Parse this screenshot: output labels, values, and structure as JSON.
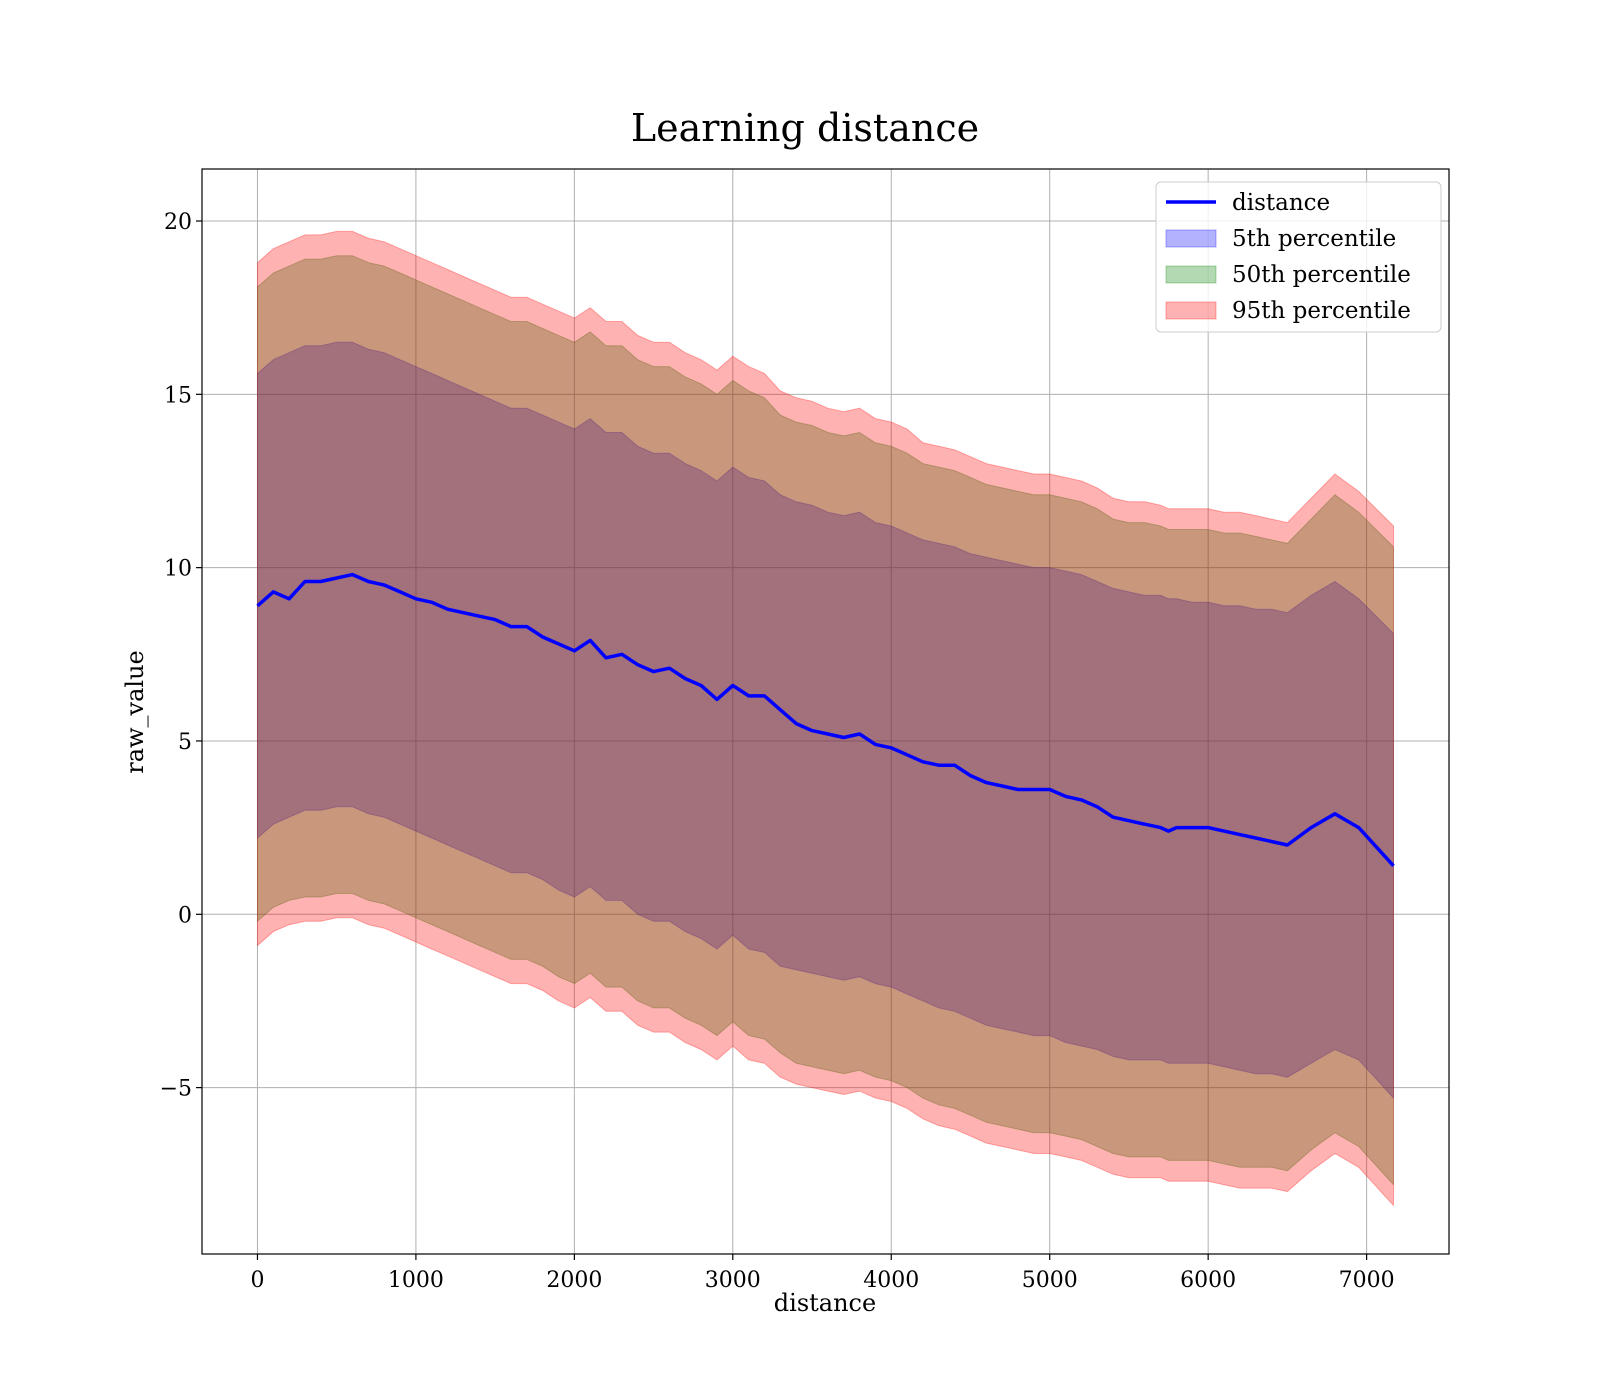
{
  "chart_data": {
    "type": "line",
    "title": "Learning distance",
    "xlabel": "distance",
    "ylabel": "raw_value",
    "xlim": [
      -350,
      7520
    ],
    "ylim": [
      -9.8,
      21.5
    ],
    "xticks": [
      0,
      1000,
      2000,
      3000,
      4000,
      5000,
      6000,
      7000
    ],
    "yticks": [
      -5,
      0,
      5,
      10,
      15,
      20
    ],
    "xtick_labels": [
      "0",
      "1000",
      "2000",
      "3000",
      "4000",
      "5000",
      "6000",
      "7000"
    ],
    "ytick_labels": [
      "−5",
      "0",
      "5",
      "10",
      "15",
      "20"
    ],
    "grid": true,
    "legend_position": "top-right",
    "x": [
      0,
      100,
      200,
      300,
      400,
      500,
      600,
      700,
      800,
      900,
      1000,
      1100,
      1200,
      1300,
      1400,
      1500,
      1600,
      1700,
      1800,
      1900,
      2000,
      2100,
      2200,
      2300,
      2400,
      2500,
      2600,
      2700,
      2800,
      2900,
      3000,
      3100,
      3200,
      3300,
      3400,
      3500,
      3600,
      3700,
      3800,
      3900,
      4000,
      4100,
      4200,
      4300,
      4400,
      4500,
      4600,
      4700,
      4800,
      4900,
      5000,
      5100,
      5200,
      5300,
      5400,
      5500,
      5600,
      5700,
      5750,
      5800,
      5900,
      6000,
      6100,
      6200,
      6300,
      6400,
      6500,
      6650,
      6800,
      6950,
      7170
    ],
    "series": [
      {
        "name": "distance",
        "kind": "line",
        "color": "#0000ff",
        "values": [
          8.9,
          9.3,
          9.1,
          9.6,
          9.6,
          9.7,
          9.8,
          9.6,
          9.5,
          9.3,
          9.1,
          9.0,
          8.8,
          8.7,
          8.6,
          8.5,
          8.3,
          8.3,
          8.0,
          7.8,
          7.6,
          7.9,
          7.4,
          7.5,
          7.2,
          7.0,
          7.1,
          6.8,
          6.6,
          6.2,
          6.6,
          6.3,
          6.3,
          5.9,
          5.5,
          5.3,
          5.2,
          5.1,
          5.2,
          4.9,
          4.8,
          4.6,
          4.4,
          4.3,
          4.3,
          4.0,
          3.8,
          3.7,
          3.6,
          3.6,
          3.6,
          3.4,
          3.3,
          3.1,
          2.8,
          2.7,
          2.6,
          2.5,
          2.4,
          2.5,
          2.5,
          2.5,
          2.4,
          2.3,
          2.2,
          2.1,
          2.0,
          2.5,
          2.9,
          2.5,
          1.4
        ]
      },
      {
        "name": "5th percentile",
        "kind": "band",
        "color": "#0000ff",
        "upper": [
          15.6,
          16.0,
          16.2,
          16.4,
          16.4,
          16.5,
          16.5,
          16.3,
          16.2,
          16.0,
          15.8,
          15.6,
          15.4,
          15.2,
          15.0,
          14.8,
          14.6,
          14.6,
          14.4,
          14.2,
          14.0,
          14.3,
          13.9,
          13.9,
          13.5,
          13.3,
          13.3,
          13.0,
          12.8,
          12.5,
          12.9,
          12.6,
          12.5,
          12.1,
          11.9,
          11.8,
          11.6,
          11.5,
          11.6,
          11.3,
          11.2,
          11.0,
          10.8,
          10.7,
          10.6,
          10.4,
          10.3,
          10.2,
          10.1,
          10.0,
          10.0,
          9.9,
          9.8,
          9.6,
          9.4,
          9.3,
          9.2,
          9.2,
          9.1,
          9.1,
          9.0,
          9.0,
          8.9,
          8.9,
          8.8,
          8.8,
          8.7,
          9.2,
          9.6,
          9.1,
          8.1
        ],
        "lower": [
          2.2,
          2.6,
          2.8,
          3.0,
          3.0,
          3.1,
          3.1,
          2.9,
          2.8,
          2.6,
          2.4,
          2.2,
          2.0,
          1.8,
          1.6,
          1.4,
          1.2,
          1.2,
          1.0,
          0.7,
          0.5,
          0.8,
          0.4,
          0.4,
          0.0,
          -0.2,
          -0.2,
          -0.5,
          -0.7,
          -1.0,
          -0.6,
          -1.0,
          -1.1,
          -1.5,
          -1.6,
          -1.7,
          -1.8,
          -1.9,
          -1.8,
          -2.0,
          -2.1,
          -2.3,
          -2.5,
          -2.7,
          -2.8,
          -3.0,
          -3.2,
          -3.3,
          -3.4,
          -3.5,
          -3.5,
          -3.7,
          -3.8,
          -3.9,
          -4.1,
          -4.2,
          -4.2,
          -4.2,
          -4.3,
          -4.3,
          -4.3,
          -4.3,
          -4.4,
          -4.5,
          -4.6,
          -4.6,
          -4.7,
          -4.3,
          -3.9,
          -4.2,
          -5.3
        ]
      },
      {
        "name": "50th percentile",
        "kind": "band",
        "color": "#008000",
        "upper": [
          18.1,
          18.5,
          18.7,
          18.9,
          18.9,
          19.0,
          19.0,
          18.8,
          18.7,
          18.5,
          18.3,
          18.1,
          17.9,
          17.7,
          17.5,
          17.3,
          17.1,
          17.1,
          16.9,
          16.7,
          16.5,
          16.8,
          16.4,
          16.4,
          16.0,
          15.8,
          15.8,
          15.5,
          15.3,
          15.0,
          15.4,
          15.1,
          14.9,
          14.4,
          14.2,
          14.1,
          13.9,
          13.8,
          13.9,
          13.6,
          13.5,
          13.3,
          13.0,
          12.9,
          12.8,
          12.6,
          12.4,
          12.3,
          12.2,
          12.1,
          12.1,
          12.0,
          11.9,
          11.7,
          11.4,
          11.3,
          11.3,
          11.2,
          11.1,
          11.1,
          11.1,
          11.1,
          11.0,
          11.0,
          10.9,
          10.8,
          10.7,
          11.4,
          12.1,
          11.6,
          10.6
        ],
        "lower": [
          -0.2,
          0.2,
          0.4,
          0.5,
          0.5,
          0.6,
          0.6,
          0.4,
          0.3,
          0.1,
          -0.1,
          -0.3,
          -0.5,
          -0.7,
          -0.9,
          -1.1,
          -1.3,
          -1.3,
          -1.5,
          -1.8,
          -2.0,
          -1.7,
          -2.1,
          -2.1,
          -2.5,
          -2.7,
          -2.7,
          -3.0,
          -3.2,
          -3.5,
          -3.1,
          -3.5,
          -3.6,
          -4.0,
          -4.3,
          -4.4,
          -4.5,
          -4.6,
          -4.5,
          -4.7,
          -4.8,
          -5.0,
          -5.3,
          -5.5,
          -5.6,
          -5.8,
          -6.0,
          -6.1,
          -6.2,
          -6.3,
          -6.3,
          -6.4,
          -6.5,
          -6.7,
          -6.9,
          -7.0,
          -7.0,
          -7.0,
          -7.1,
          -7.1,
          -7.1,
          -7.1,
          -7.2,
          -7.3,
          -7.3,
          -7.3,
          -7.4,
          -6.8,
          -6.3,
          -6.7,
          -7.8
        ]
      },
      {
        "name": "95th percentile",
        "kind": "band",
        "color": "#ff0000",
        "upper": [
          18.8,
          19.2,
          19.4,
          19.6,
          19.6,
          19.7,
          19.7,
          19.5,
          19.4,
          19.2,
          19.0,
          18.8,
          18.6,
          18.4,
          18.2,
          18.0,
          17.8,
          17.8,
          17.6,
          17.4,
          17.2,
          17.5,
          17.1,
          17.1,
          16.7,
          16.5,
          16.5,
          16.2,
          16.0,
          15.7,
          16.1,
          15.8,
          15.6,
          15.1,
          14.9,
          14.8,
          14.6,
          14.5,
          14.6,
          14.3,
          14.2,
          14.0,
          13.6,
          13.5,
          13.4,
          13.2,
          13.0,
          12.9,
          12.8,
          12.7,
          12.7,
          12.6,
          12.5,
          12.3,
          12.0,
          11.9,
          11.9,
          11.8,
          11.7,
          11.7,
          11.7,
          11.7,
          11.6,
          11.6,
          11.5,
          11.4,
          11.3,
          12.0,
          12.7,
          12.2,
          11.2
        ],
        "lower": [
          -0.9,
          -0.5,
          -0.3,
          -0.2,
          -0.2,
          -0.1,
          -0.1,
          -0.3,
          -0.4,
          -0.6,
          -0.8,
          -1.0,
          -1.2,
          -1.4,
          -1.6,
          -1.8,
          -2.0,
          -2.0,
          -2.2,
          -2.5,
          -2.7,
          -2.4,
          -2.8,
          -2.8,
          -3.2,
          -3.4,
          -3.4,
          -3.7,
          -3.9,
          -4.2,
          -3.8,
          -4.2,
          -4.3,
          -4.7,
          -4.9,
          -5.0,
          -5.1,
          -5.2,
          -5.1,
          -5.3,
          -5.4,
          -5.6,
          -5.9,
          -6.1,
          -6.2,
          -6.4,
          -6.6,
          -6.7,
          -6.8,
          -6.9,
          -6.9,
          -7.0,
          -7.1,
          -7.3,
          -7.5,
          -7.6,
          -7.6,
          -7.6,
          -7.7,
          -7.7,
          -7.7,
          -7.7,
          -7.8,
          -7.9,
          -7.9,
          -7.9,
          -8.0,
          -7.4,
          -6.9,
          -7.3,
          -8.4
        ]
      }
    ]
  }
}
